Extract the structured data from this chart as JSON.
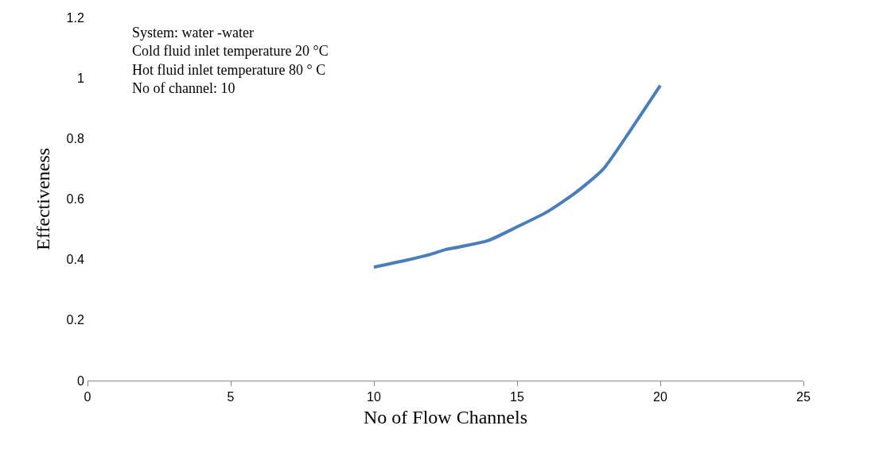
{
  "chart_data": {
    "type": "line",
    "xlabel": "No of Flow Channels",
    "ylabel": "Effectiveness",
    "annotations": [
      "System: water -water",
      "Cold fluid inlet temperature 20 °C",
      "Hot fluid inlet temperature 80 ° C",
      "No of channel: 10"
    ],
    "x": [
      10,
      11,
      12,
      12.5,
      13,
      14,
      15,
      16,
      17,
      18,
      19,
      20
    ],
    "series": [
      {
        "color": "#4a7ebb",
        "values": [
          0.375,
          0.395,
          0.418,
          0.433,
          0.442,
          0.463,
          0.508,
          0.555,
          0.618,
          0.698,
          0.833,
          0.975
        ]
      }
    ],
    "xlim": [
      0,
      25
    ],
    "xticks": [
      0,
      5,
      10,
      15,
      20,
      25
    ],
    "ylim": [
      0,
      1.2
    ],
    "yticks": [
      0,
      0.2,
      0.4,
      0.6,
      0.8,
      1,
      1.2
    ],
    "legend": false,
    "marker": "none",
    "line_style": "solid"
  }
}
